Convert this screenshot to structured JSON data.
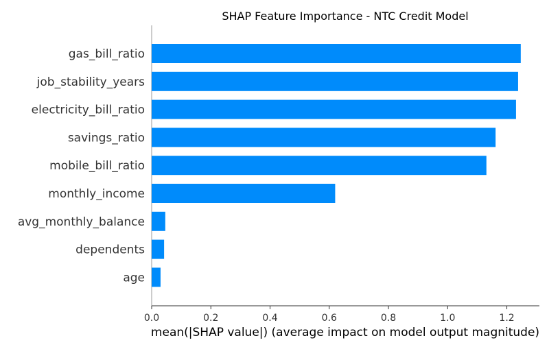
{
  "chart_data": {
    "type": "bar",
    "orientation": "horizontal",
    "title": "SHAP Feature Importance - NTC Credit Model",
    "xlabel": "mean(|SHAP value|) (average impact on model output magnitude)",
    "ylabel": "",
    "xlim": [
      0,
      1.31
    ],
    "xticks": [
      0.0,
      0.2,
      0.4,
      0.6,
      0.8,
      1.0,
      1.2
    ],
    "xtick_labels": [
      "0.0",
      "0.2",
      "0.4",
      "0.6",
      "0.8",
      "1.0",
      "1.2"
    ],
    "grid": false,
    "bar_color": "#008bfb",
    "categories": [
      "gas_bill_ratio",
      "job_stability_years",
      "electricity_bill_ratio",
      "savings_ratio",
      "mobile_bill_ratio",
      "monthly_income",
      "avg_monthly_balance",
      "dependents",
      "age"
    ],
    "values": [
      1.247,
      1.238,
      1.231,
      1.162,
      1.131,
      0.62,
      0.046,
      0.042,
      0.03
    ]
  }
}
